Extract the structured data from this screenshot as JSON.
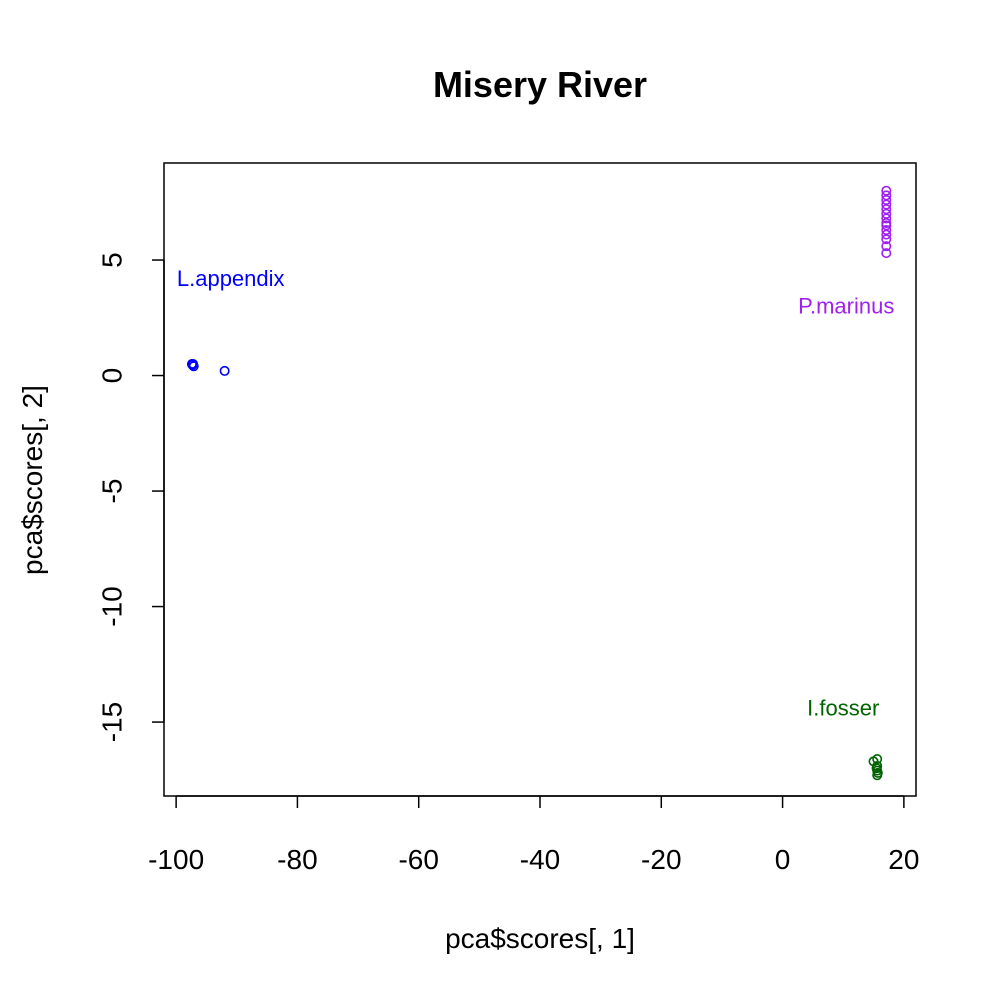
{
  "chart_data": {
    "type": "scatter",
    "title": "Misery River",
    "xlabel": "pca$scores[, 1]",
    "ylabel": "pca$scores[, 2]",
    "xlim": [
      -102,
      22
    ],
    "ylim": [
      -18.2,
      9.2
    ],
    "xticks": [
      -100,
      -80,
      -60,
      -40,
      -20,
      0,
      20
    ],
    "xtick_labels": [
      "-100",
      "-80",
      "-60",
      "-40",
      "-20",
      "0",
      "20"
    ],
    "yticks": [
      5,
      0,
      -5,
      -10,
      -15
    ],
    "ytick_labels": [
      "5",
      "0",
      "-5",
      "-10",
      "-15"
    ],
    "grid": false,
    "legend": "none",
    "series": [
      {
        "color": "#0000ff",
        "points": [
          [
            -97.3,
            0.45
          ],
          [
            -97.2,
            0.5
          ],
          [
            -97.1,
            0.4
          ],
          [
            -97.4,
            0.5
          ],
          [
            -92.0,
            0.2
          ]
        ]
      },
      {
        "color": "#a020f0",
        "points": [
          [
            17.1,
            8.0
          ],
          [
            17.1,
            7.8
          ],
          [
            17.1,
            7.6
          ],
          [
            17.1,
            7.4
          ],
          [
            17.1,
            7.2
          ],
          [
            17.1,
            7.0
          ],
          [
            17.1,
            6.8
          ],
          [
            17.1,
            6.6
          ],
          [
            17.1,
            6.5
          ],
          [
            17.1,
            6.3
          ],
          [
            17.1,
            6.1
          ],
          [
            17.1,
            5.9
          ],
          [
            17.1,
            5.6
          ],
          [
            17.1,
            5.3
          ]
        ]
      },
      {
        "color": "#006400",
        "points": [
          [
            15.0,
            -16.7
          ],
          [
            15.6,
            -16.6
          ],
          [
            15.6,
            -16.9
          ],
          [
            15.6,
            -17.1
          ],
          [
            15.7,
            -17.2
          ],
          [
            15.6,
            -17.3
          ],
          [
            15.5,
            -17.0
          ]
        ]
      }
    ],
    "annotations": [
      {
        "text": "L.appendix",
        "x": -91.0,
        "y": 4.2,
        "color": "#0000ff"
      },
      {
        "text": "P.marinus",
        "x": 10.5,
        "y": 3.0,
        "color": "#a020f0"
      },
      {
        "text": "I.fosser",
        "x": 10.0,
        "y": -14.4,
        "color": "#006400"
      }
    ]
  }
}
